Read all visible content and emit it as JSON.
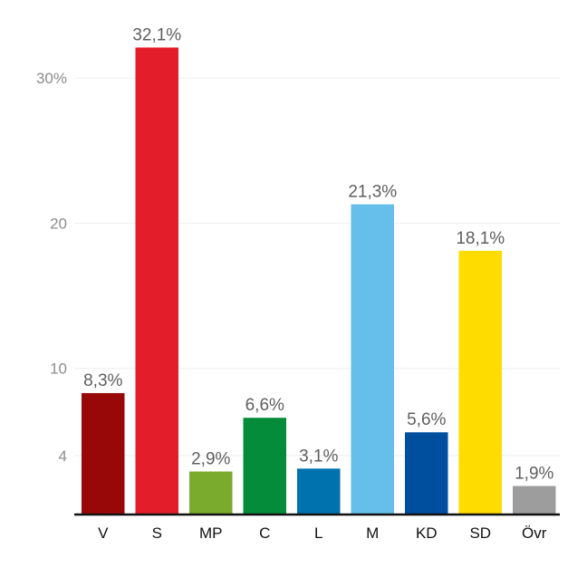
{
  "chart_data": {
    "type": "bar",
    "categories": [
      "V",
      "S",
      "MP",
      "C",
      "L",
      "M",
      "KD",
      "SD",
      "Övr"
    ],
    "values": [
      8.3,
      32.1,
      2.9,
      6.6,
      3.1,
      21.3,
      5.6,
      18.1,
      1.9
    ],
    "value_labels": [
      "8,3%",
      "32,1%",
      "2,9%",
      "6,6%",
      "3,1%",
      "21,3%",
      "5,6%",
      "18,1%",
      "1,9%"
    ],
    "colors": [
      "#990808",
      "#e31e2a",
      "#7aab2c",
      "#058c3b",
      "#0073ae",
      "#66bfea",
      "#004f9f",
      "#ffdc00",
      "#9d9d9d"
    ],
    "yticks": [
      {
        "value": 4,
        "label": "4"
      },
      {
        "value": 10,
        "label": "10"
      },
      {
        "value": 20,
        "label": "20"
      },
      {
        "value": 30,
        "label": "30%"
      }
    ],
    "ylim": [
      0,
      33.5
    ],
    "grid": true,
    "title": "",
    "xlabel": "",
    "ylabel": ""
  }
}
